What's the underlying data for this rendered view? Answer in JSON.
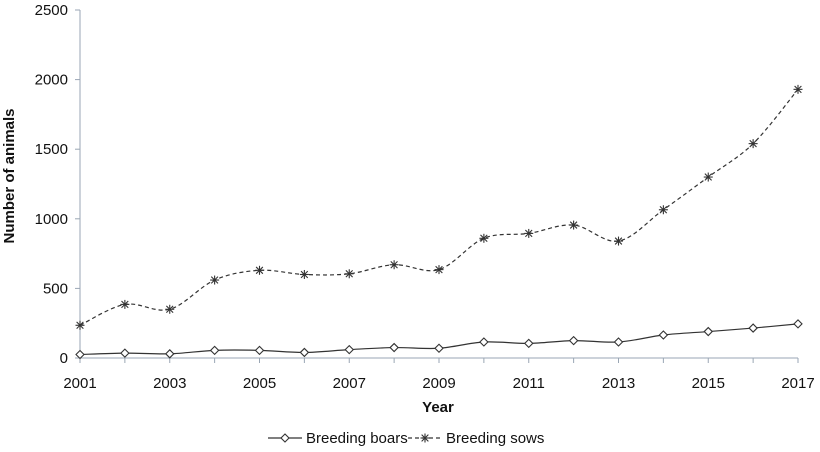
{
  "chart_data": {
    "type": "line",
    "title": "",
    "xlabel": "Year",
    "ylabel": "Number of animals",
    "ylim": [
      0,
      2500
    ],
    "yticks": [
      "0",
      "500",
      "1000",
      "1500",
      "2000",
      "2500"
    ],
    "xticks": [
      "2001",
      "2003",
      "2005",
      "2007",
      "2009",
      "2011",
      "2013",
      "2015",
      "2017"
    ],
    "x": [
      2001,
      2002,
      2003,
      2004,
      2005,
      2006,
      2007,
      2008,
      2009,
      2010,
      2011,
      2012,
      2013,
      2014,
      2015,
      2016,
      2017
    ],
    "grid": false,
    "legend_position": "bottom",
    "series": [
      {
        "name": "Breeding boars",
        "marker": "diamond",
        "line_style": "solid",
        "color": "#333333",
        "values": [
          25,
          35,
          30,
          55,
          55,
          40,
          60,
          75,
          70,
          115,
          105,
          125,
          115,
          165,
          190,
          215,
          245
        ]
      },
      {
        "name": "Breeding sows",
        "marker": "star",
        "line_style": "dashed",
        "color": "#333333",
        "values": [
          235,
          385,
          350,
          560,
          630,
          600,
          605,
          670,
          635,
          860,
          895,
          955,
          840,
          1065,
          1300,
          1540,
          1930
        ]
      }
    ]
  }
}
